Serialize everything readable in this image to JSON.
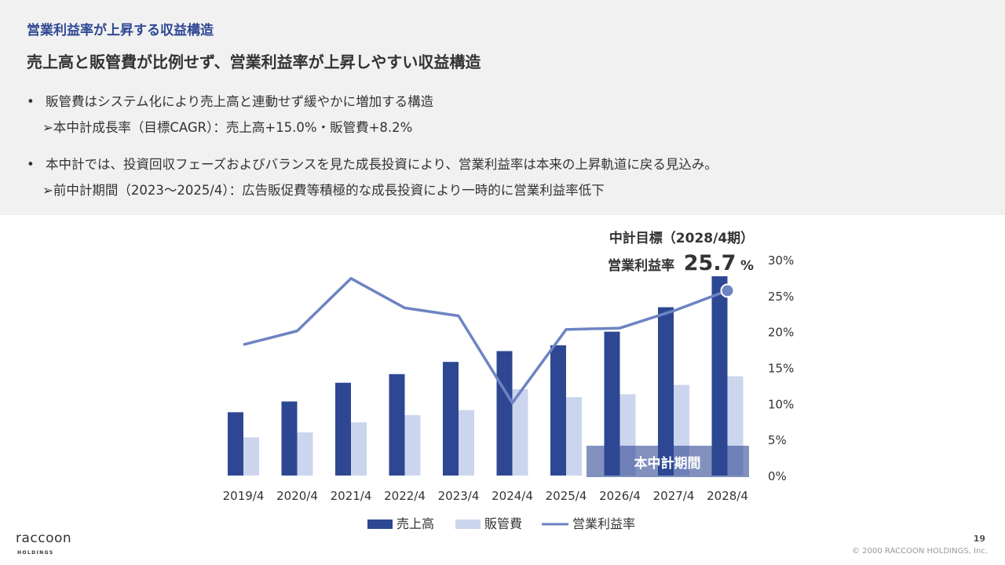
{
  "header": {
    "section_label": "営業利益率が上昇する収益構造",
    "headline": "売上高と販管費が比例せず、営業利益率が上昇しやすい収益構造"
  },
  "bullets": [
    {
      "marker": "•",
      "text": "販管費はシステム化により売上高と連動せず緩やかに増加する構造",
      "sub_marker": "➢",
      "sub": "本中計成長率（目標CAGR）：売上高+15.0%・販管費+8.2%"
    },
    {
      "marker": "•",
      "text": "本中計では、投資回収フェーズおよびバランスを見た成長投資により、営業利益率は本来の上昇軌道に戻る見込み。",
      "sub_marker": "➢",
      "sub": "前中計期間（2023〜2025/4）：広告販促費等積極的な成長投資により一時的に営業利益率低下"
    }
  ],
  "chart_data": {
    "type": "bar",
    "categories": [
      "2019/4",
      "2020/4",
      "2021/4",
      "2022/4",
      "2023/4",
      "2024/4",
      "2025/4",
      "2026/4",
      "2027/4",
      "2028/4"
    ],
    "series": [
      {
        "name": "売上高",
        "kind": "bar",
        "color": "#2e4793",
        "values": [
          8.8,
          10.3,
          12.9,
          14.1,
          15.8,
          17.3,
          18.1,
          20.0,
          23.4,
          27.7
        ]
      },
      {
        "name": "販管費",
        "kind": "bar",
        "color": "#ccd5ee",
        "values": [
          5.3,
          6.0,
          7.4,
          8.4,
          9.1,
          12.0,
          10.9,
          11.3,
          12.6,
          13.8
        ]
      },
      {
        "name": "営業利益率",
        "kind": "line",
        "color": "#6d84c3",
        "values": [
          18.2,
          20.1,
          27.4,
          23.3,
          22.2,
          10.1,
          20.3,
          20.5,
          22.9,
          25.7
        ]
      }
    ],
    "y_ticks": [
      "0%",
      "5%",
      "10%",
      "15%",
      "20%",
      "25%",
      "30%"
    ],
    "ylim": [
      0,
      30
    ],
    "axis_side": "right",
    "legend_position": "bottom",
    "plan_label": "本中計期間",
    "plan_span": [
      "2026/4",
      "2028/4"
    ],
    "callout": {
      "line1": "中計目標（2028/4期）",
      "label": "営業利益率",
      "value": "25.7",
      "unit": "%"
    }
  },
  "footer": {
    "logo_text": "raccoon",
    "logo_sub": "HOLDINGS",
    "page_number": "19",
    "copyright": "© 2000 RACCOON HOLDINGS, Inc."
  }
}
